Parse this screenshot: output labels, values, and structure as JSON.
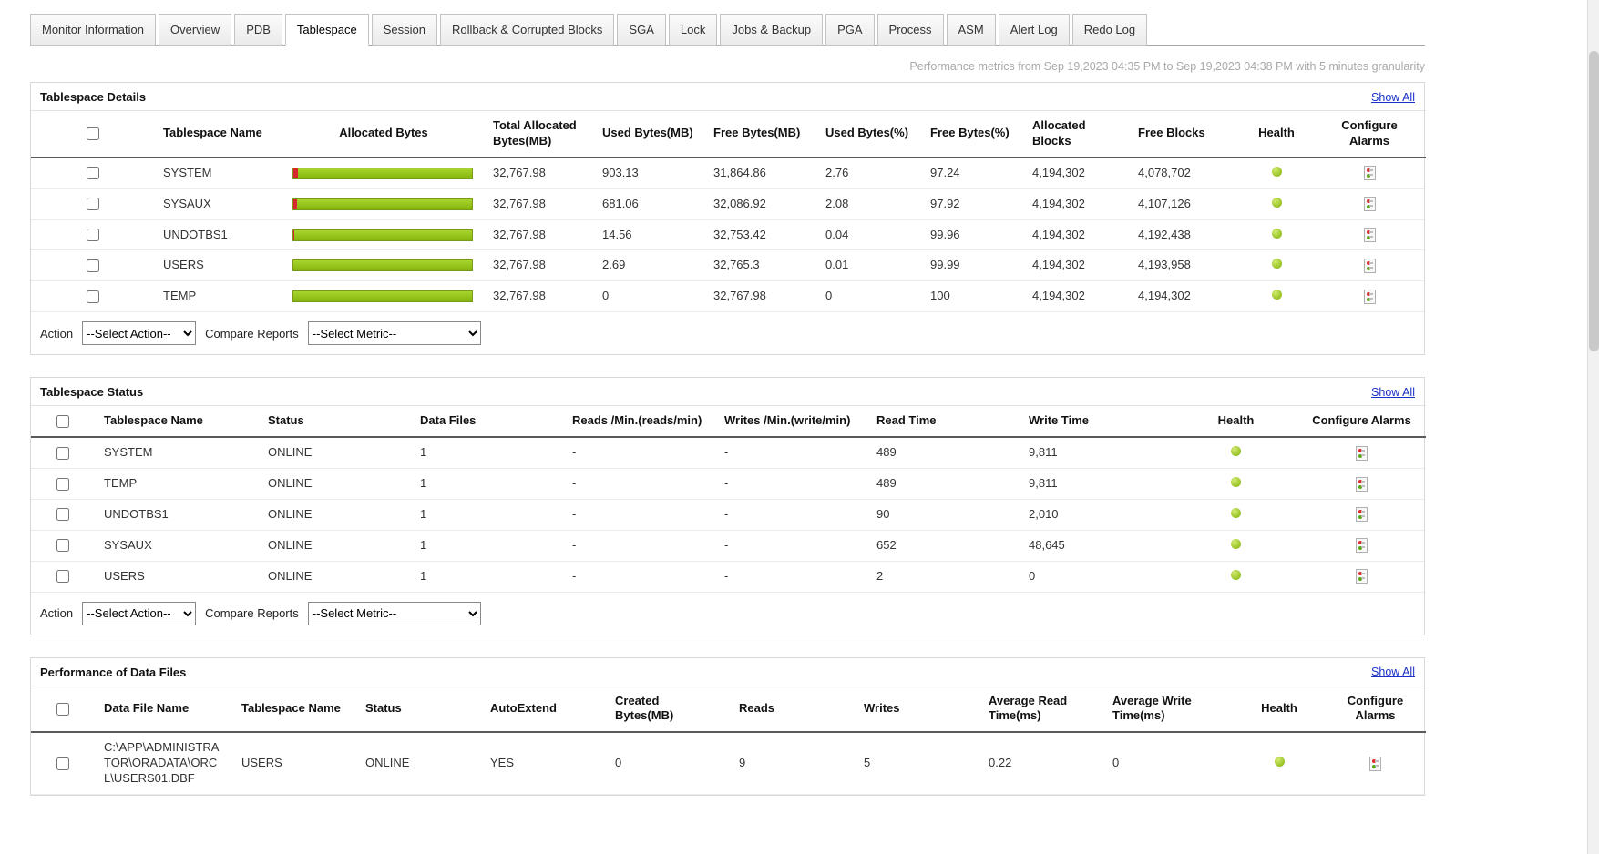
{
  "tabs": [
    "Monitor Information",
    "Overview",
    "PDB",
    "Tablespace",
    "Session",
    "Rollback & Corrupted Blocks",
    "SGA",
    "Lock",
    "Jobs & Backup",
    "PGA",
    "Process",
    "ASM",
    "Alert Log",
    "Redo Log"
  ],
  "active_tab": "Tablespace",
  "metrics_note": "Performance metrics from Sep 19,2023 04:35 PM to Sep 19,2023 04:38 PM with 5 minutes granularity",
  "show_all_label": "Show All",
  "action_bar": {
    "action_label": "Action",
    "action_value": "--Select Action--",
    "compare_label": "Compare Reports",
    "metric_value": "--Select Metric--"
  },
  "colors": {
    "health_green": "#93bf1e",
    "bar_green_light": "#a9d52d",
    "bar_green_dark": "#85b40e",
    "bar_red": "#d8262c",
    "link_blue": "#1a31c8"
  },
  "tablespace_details": {
    "title": "Tablespace Details",
    "columns": [
      "Tablespace Name",
      "Allocated Bytes",
      "Total Allocated Bytes(MB)",
      "Used Bytes(MB)",
      "Free Bytes(MB)",
      "Used Bytes(%)",
      "Free Bytes(%)",
      "Allocated Blocks",
      "Free Blocks",
      "Health",
      "Configure Alarms"
    ],
    "rows": [
      {
        "name": "SYSTEM",
        "total_allocated_mb": "32,767.98",
        "used_mb": "903.13",
        "free_mb": "31,864.86",
        "used_pct": "2.76",
        "free_pct": "97.24",
        "allocated_blocks": "4,194,302",
        "free_blocks": "4,078,702",
        "health": "green"
      },
      {
        "name": "SYSAUX",
        "total_allocated_mb": "32,767.98",
        "used_mb": "681.06",
        "free_mb": "32,086.92",
        "used_pct": "2.08",
        "free_pct": "97.92",
        "allocated_blocks": "4,194,302",
        "free_blocks": "4,107,126",
        "health": "green"
      },
      {
        "name": "UNDOTBS1",
        "total_allocated_mb": "32,767.98",
        "used_mb": "14.56",
        "free_mb": "32,753.42",
        "used_pct": "0.04",
        "free_pct": "99.96",
        "allocated_blocks": "4,194,302",
        "free_blocks": "4,192,438",
        "health": "green"
      },
      {
        "name": "USERS",
        "total_allocated_mb": "32,767.98",
        "used_mb": "2.69",
        "free_mb": "32,765.3",
        "used_pct": "0.01",
        "free_pct": "99.99",
        "allocated_blocks": "4,194,302",
        "free_blocks": "4,193,958",
        "health": "green"
      },
      {
        "name": "TEMP",
        "total_allocated_mb": "32,767.98",
        "used_mb": "0",
        "free_mb": "32,767.98",
        "used_pct": "0",
        "free_pct": "100",
        "allocated_blocks": "4,194,302",
        "free_blocks": "4,194,302",
        "health": "green"
      }
    ]
  },
  "tablespace_status": {
    "title": "Tablespace Status",
    "columns": [
      "Tablespace Name",
      "Status",
      "Data Files",
      "Reads /Min.(reads/min)",
      "Writes /Min.(write/min)",
      "Read Time",
      "Write Time",
      "Health",
      "Configure Alarms"
    ],
    "rows": [
      {
        "name": "SYSTEM",
        "status": "ONLINE",
        "data_files": "1",
        "reads_min": "-",
        "writes_min": "-",
        "read_time": "489",
        "write_time": "9,811",
        "health": "green"
      },
      {
        "name": "TEMP",
        "status": "ONLINE",
        "data_files": "1",
        "reads_min": "-",
        "writes_min": "-",
        "read_time": "489",
        "write_time": "9,811",
        "health": "green"
      },
      {
        "name": "UNDOTBS1",
        "status": "ONLINE",
        "data_files": "1",
        "reads_min": "-",
        "writes_min": "-",
        "read_time": "90",
        "write_time": "2,010",
        "health": "green"
      },
      {
        "name": "SYSAUX",
        "status": "ONLINE",
        "data_files": "1",
        "reads_min": "-",
        "writes_min": "-",
        "read_time": "652",
        "write_time": "48,645",
        "health": "green"
      },
      {
        "name": "USERS",
        "status": "ONLINE",
        "data_files": "1",
        "reads_min": "-",
        "writes_min": "-",
        "read_time": "2",
        "write_time": "0",
        "health": "green"
      }
    ]
  },
  "data_files_performance": {
    "title": "Performance of Data Files",
    "columns": [
      "Data File Name",
      "Tablespace Name",
      "Status",
      "AutoExtend",
      "Created Bytes(MB)",
      "Reads",
      "Writes",
      "Average Read Time(ms)",
      "Average Write Time(ms)",
      "Health",
      "Configure Alarms"
    ],
    "rows": [
      {
        "file": "C:\\APP\\ADMINISTRATOR\\ORADATA\\ORCL\\USERS01.DBF",
        "tablespace": "USERS",
        "status": "ONLINE",
        "autoextend": "YES",
        "created_mb": "0",
        "reads": "9",
        "writes": "5",
        "avg_read_ms": "0.22",
        "avg_write_ms": "0",
        "health": "green"
      }
    ]
  }
}
